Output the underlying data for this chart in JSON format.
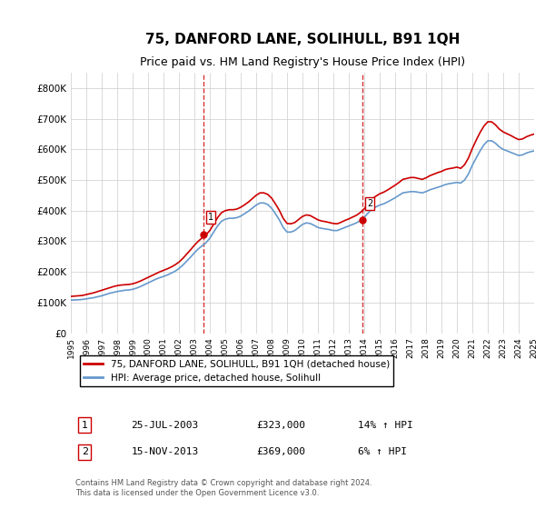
{
  "title": "75, DANFORD LANE, SOLIHULL, B91 1QH",
  "subtitle": "Price paid vs. HM Land Registry's House Price Index (HPI)",
  "xlabel": "",
  "ylabel": "",
  "ylim": [
    0,
    850000
  ],
  "yticks": [
    0,
    100000,
    200000,
    300000,
    400000,
    500000,
    600000,
    700000,
    800000
  ],
  "ytick_labels": [
    "£0",
    "£100K",
    "£200K",
    "£300K",
    "£400K",
    "£500K",
    "£600K",
    "£700K",
    "£800K"
  ],
  "background_color": "#ffffff",
  "plot_bg_color": "#ffffff",
  "grid_color": "#cccccc",
  "line1_color": "#cc0000",
  "line2_color": "#6699cc",
  "title_fontsize": 11,
  "subtitle_fontsize": 9,
  "legend1_label": "75, DANFORD LANE, SOLIHULL, B91 1QH (detached house)",
  "legend2_label": "HPI: Average price, detached house, Solihull",
  "transaction1_label": "1",
  "transaction1_date": "25-JUL-2003",
  "transaction1_price": "£323,000",
  "transaction1_hpi": "14% ↑ HPI",
  "transaction1_year": 2003.57,
  "transaction1_value": 323000,
  "transaction2_label": "2",
  "transaction2_date": "15-NOV-2013",
  "transaction2_price": "£369,000",
  "transaction2_hpi": "6% ↑ HPI",
  "transaction2_year": 2013.88,
  "transaction2_value": 369000,
  "footer_text": "Contains HM Land Registry data © Crown copyright and database right 2024.\nThis data is licensed under the Open Government Licence v3.0.",
  "hpi_years": [
    1995,
    1995.25,
    1995.5,
    1995.75,
    1996,
    1996.25,
    1996.5,
    1996.75,
    1997,
    1997.25,
    1997.5,
    1997.75,
    1998,
    1998.25,
    1998.5,
    1998.75,
    1999,
    1999.25,
    1999.5,
    1999.75,
    2000,
    2000.25,
    2000.5,
    2000.75,
    2001,
    2001.25,
    2001.5,
    2001.75,
    2002,
    2002.25,
    2002.5,
    2002.75,
    2003,
    2003.25,
    2003.5,
    2003.75,
    2004,
    2004.25,
    2004.5,
    2004.75,
    2005,
    2005.25,
    2005.5,
    2005.75,
    2006,
    2006.25,
    2006.5,
    2006.75,
    2007,
    2007.25,
    2007.5,
    2007.75,
    2008,
    2008.25,
    2008.5,
    2008.75,
    2009,
    2009.25,
    2009.5,
    2009.75,
    2010,
    2010.25,
    2010.5,
    2010.75,
    2011,
    2011.25,
    2011.5,
    2011.75,
    2012,
    2012.25,
    2012.5,
    2012.75,
    2013,
    2013.25,
    2013.5,
    2013.75,
    2014,
    2014.25,
    2014.5,
    2014.75,
    2015,
    2015.25,
    2015.5,
    2015.75,
    2016,
    2016.25,
    2016.5,
    2016.75,
    2017,
    2017.25,
    2017.5,
    2017.75,
    2018,
    2018.25,
    2018.5,
    2018.75,
    2019,
    2019.25,
    2019.5,
    2019.75,
    2020,
    2020.25,
    2020.5,
    2020.75,
    2021,
    2021.25,
    2021.5,
    2021.75,
    2022,
    2022.25,
    2022.5,
    2022.75,
    2023,
    2023.25,
    2023.5,
    2023.75,
    2024,
    2024.25,
    2024.5,
    2024.75,
    2025
  ],
  "hpi_values": [
    108000,
    108500,
    109000,
    110000,
    112000,
    114000,
    116000,
    119000,
    122000,
    126000,
    130000,
    133000,
    136000,
    138000,
    140000,
    141000,
    143000,
    147000,
    152000,
    158000,
    164000,
    170000,
    176000,
    181000,
    185000,
    190000,
    196000,
    202000,
    211000,
    222000,
    235000,
    248000,
    262000,
    275000,
    285000,
    295000,
    310000,
    330000,
    350000,
    365000,
    372000,
    375000,
    375000,
    377000,
    382000,
    390000,
    398000,
    408000,
    418000,
    425000,
    425000,
    420000,
    408000,
    390000,
    370000,
    345000,
    330000,
    330000,
    335000,
    345000,
    355000,
    360000,
    358000,
    352000,
    345000,
    342000,
    340000,
    338000,
    335000,
    335000,
    340000,
    345000,
    350000,
    355000,
    360000,
    368000,
    378000,
    392000,
    405000,
    412000,
    418000,
    422000,
    428000,
    435000,
    442000,
    450000,
    458000,
    460000,
    462000,
    462000,
    460000,
    458000,
    462000,
    468000,
    472000,
    476000,
    480000,
    485000,
    488000,
    490000,
    492000,
    490000,
    500000,
    520000,
    548000,
    572000,
    595000,
    615000,
    628000,
    628000,
    620000,
    608000,
    600000,
    595000,
    590000,
    585000,
    580000,
    582000,
    588000,
    592000,
    595000
  ],
  "price_years": [
    1995,
    1995.25,
    1995.5,
    1995.75,
    1996,
    1996.25,
    1996.5,
    1996.75,
    1997,
    1997.25,
    1997.5,
    1997.75,
    1998,
    1998.25,
    1998.5,
    1998.75,
    1999,
    1999.25,
    1999.5,
    1999.75,
    2000,
    2000.25,
    2000.5,
    2000.75,
    2001,
    2001.25,
    2001.5,
    2001.75,
    2002,
    2002.25,
    2002.5,
    2002.75,
    2003,
    2003.25,
    2003.5,
    2003.75,
    2004,
    2004.25,
    2004.5,
    2004.75,
    2005,
    2005.25,
    2005.5,
    2005.75,
    2006,
    2006.25,
    2006.5,
    2006.75,
    2007,
    2007.25,
    2007.5,
    2007.75,
    2008,
    2008.25,
    2008.5,
    2008.75,
    2009,
    2009.25,
    2009.5,
    2009.75,
    2010,
    2010.25,
    2010.5,
    2010.75,
    2011,
    2011.25,
    2011.5,
    2011.75,
    2012,
    2012.25,
    2012.5,
    2012.75,
    2013,
    2013.25,
    2013.5,
    2013.75,
    2014,
    2014.25,
    2014.5,
    2014.75,
    2015,
    2015.25,
    2015.5,
    2015.75,
    2016,
    2016.25,
    2016.5,
    2016.75,
    2017,
    2017.25,
    2017.5,
    2017.75,
    2018,
    2018.25,
    2018.5,
    2018.75,
    2019,
    2019.25,
    2019.5,
    2019.75,
    2020,
    2020.25,
    2020.5,
    2020.75,
    2021,
    2021.25,
    2021.5,
    2021.75,
    2022,
    2022.25,
    2022.5,
    2022.75,
    2023,
    2023.25,
    2023.5,
    2023.75,
    2024,
    2024.25,
    2024.5,
    2024.75,
    2025
  ],
  "price_values": [
    120000,
    121000,
    122000,
    123000,
    126000,
    129000,
    132000,
    136000,
    140000,
    144000,
    148000,
    152000,
    155000,
    157000,
    158000,
    159000,
    161000,
    165000,
    170000,
    176000,
    182000,
    188000,
    194000,
    200000,
    205000,
    210000,
    216000,
    223000,
    232000,
    244000,
    258000,
    272000,
    287000,
    300000,
    311000,
    321000,
    335000,
    356000,
    377000,
    393000,
    400000,
    403000,
    403000,
    405000,
    411000,
    419000,
    428000,
    439000,
    450000,
    458000,
    458000,
    453000,
    441000,
    422000,
    401000,
    375000,
    358000,
    357000,
    361000,
    371000,
    381000,
    386000,
    384000,
    377000,
    370000,
    366000,
    364000,
    361000,
    358000,
    357000,
    362000,
    368000,
    373000,
    379000,
    385000,
    394000,
    406000,
    422000,
    438000,
    447000,
    455000,
    460000,
    467000,
    475000,
    483000,
    492000,
    502000,
    505000,
    508000,
    508000,
    505000,
    502000,
    507000,
    514000,
    519000,
    524000,
    528000,
    534000,
    537000,
    539000,
    542000,
    538000,
    550000,
    572000,
    603000,
    630000,
    655000,
    676000,
    690000,
    690000,
    680000,
    666000,
    657000,
    651000,
    645000,
    638000,
    632000,
    634000,
    641000,
    646000,
    650000
  ],
  "xtick_years": [
    1995,
    1996,
    1997,
    1998,
    1999,
    2000,
    2001,
    2002,
    2003,
    2004,
    2005,
    2006,
    2007,
    2008,
    2009,
    2010,
    2011,
    2012,
    2013,
    2014,
    2015,
    2016,
    2017,
    2018,
    2019,
    2020,
    2021,
    2022,
    2023,
    2024,
    2025
  ]
}
